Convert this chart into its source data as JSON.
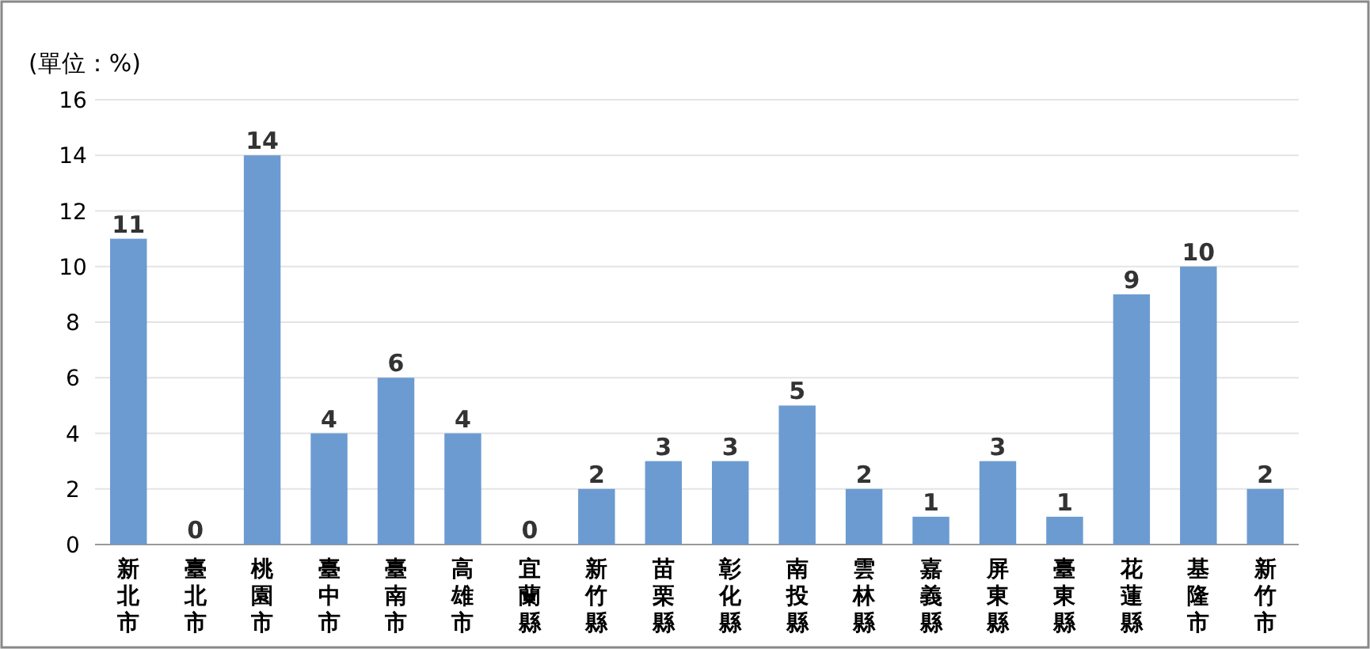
{
  "chart_data": {
    "type": "bar",
    "ylabel": "(單位：%)",
    "categories": [
      "新北市",
      "臺北市",
      "桃園市",
      "臺中市",
      "臺南市",
      "高雄市",
      "宜蘭縣",
      "新竹縣",
      "苗栗縣",
      "彰化縣",
      "南投縣",
      "雲林縣",
      "嘉義縣",
      "屏東縣",
      "臺東縣",
      "花蓮縣",
      "基隆市",
      "新竹市"
    ],
    "values": [
      11,
      0,
      14,
      4,
      6,
      4,
      0,
      2,
      3,
      3,
      5,
      2,
      1,
      3,
      1,
      9,
      10,
      2
    ],
    "color": "#6b9bd1",
    "ylim": [
      0,
      16
    ],
    "yticks": [
      0,
      2,
      4,
      6,
      8,
      10,
      12,
      14,
      16
    ],
    "grid": "y",
    "data_labels": true
  }
}
